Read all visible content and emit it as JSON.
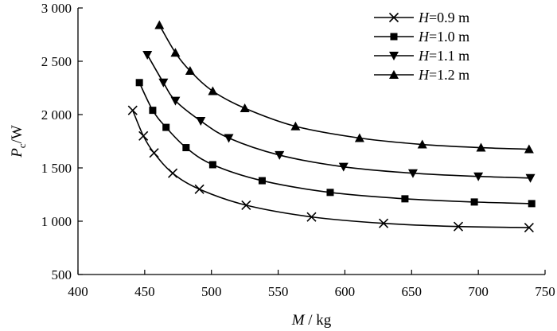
{
  "chart_data": {
    "type": "line",
    "xlabel": {
      "var": "M",
      "unit": " / kg"
    },
    "ylabel": {
      "var": "P",
      "sub": "c",
      "unit": "/W"
    },
    "xlim": [
      400,
      750
    ],
    "ylim": [
      500,
      3000
    ],
    "x_ticks": [
      400,
      450,
      500,
      550,
      600,
      650,
      700,
      750
    ],
    "x_tick_labels": [
      "400",
      "450",
      "500",
      "550",
      "600",
      "650",
      "700",
      "750"
    ],
    "y_ticks": [
      500,
      1000,
      1500,
      2000,
      2500,
      3000
    ],
    "y_tick_labels": [
      "500",
      "1 000",
      "1 500",
      "2 000",
      "2 500",
      "3 000"
    ],
    "grid": false,
    "legend_position": "top-right",
    "series": [
      {
        "name": "H=0.9 m",
        "legend": {
          "var": "H",
          "rest": "=0.9 m"
        },
        "marker": "x",
        "x": [
          441,
          449,
          457,
          471,
          491,
          526,
          575,
          629,
          685,
          738
        ],
        "y": [
          2040,
          1800,
          1640,
          1450,
          1300,
          1150,
          1040,
          980,
          950,
          940
        ]
      },
      {
        "name": "H=1.0 m",
        "legend": {
          "var": "H",
          "rest": "=1.0 m"
        },
        "marker": "square",
        "x": [
          446,
          456,
          466,
          481,
          501,
          538,
          589,
          645,
          697,
          740
        ],
        "y": [
          2300,
          2040,
          1880,
          1690,
          1530,
          1380,
          1270,
          1210,
          1180,
          1165
        ]
      },
      {
        "name": "H=1.1 m",
        "legend": {
          "var": "H",
          "rest": "=1.1 m"
        },
        "marker": "triangle-down",
        "x": [
          452,
          464,
          473,
          492,
          513,
          551,
          599,
          651,
          700,
          739
        ],
        "y": [
          2560,
          2300,
          2130,
          1940,
          1780,
          1620,
          1510,
          1450,
          1420,
          1405
        ]
      },
      {
        "name": "H=1.2 m",
        "legend": {
          "var": "H",
          "rest": "=1.2 m"
        },
        "marker": "triangle-up",
        "x": [
          461,
          473,
          484,
          501,
          525,
          563,
          611,
          658,
          702,
          738
        ],
        "y": [
          2840,
          2580,
          2410,
          2220,
          2060,
          1890,
          1780,
          1720,
          1690,
          1675
        ]
      }
    ]
  }
}
